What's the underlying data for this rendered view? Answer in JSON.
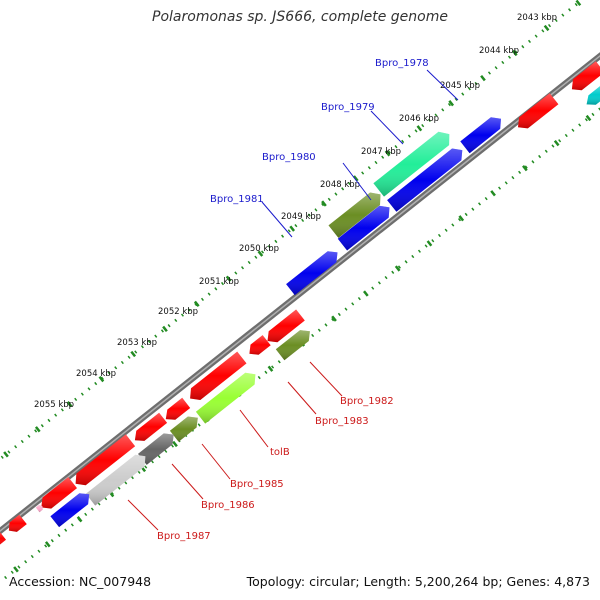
{
  "title": "Polaromonas sp. JS666, complete genome",
  "footer": {
    "accession": "Accession: NC_007948",
    "topology": "Topology: circular; Length: 5,200,264 bp; Genes: 4,873"
  },
  "ticks": [
    "2043 kbp",
    "2044 kbp",
    "2045 kbp",
    "2046 kbp",
    "2047 kbp",
    "2048 kbp",
    "2049 kbp",
    "2050 kbp",
    "2051 kbp",
    "2052 kbp",
    "2053 kbp",
    "2054 kbp",
    "2055 kbp"
  ],
  "gene_labels_top": [
    "Bpro_1978",
    "Bpro_1979",
    "Bpro_1980",
    "Bpro_1981"
  ],
  "gene_labels_bottom": [
    "Bpro_1982",
    "Bpro_1983",
    "tolB",
    "Bpro_1985",
    "Bpro_1986",
    "Bpro_1987"
  ],
  "colors": {
    "blue_label": "#1a1acc",
    "red_label": "#cc1a1a",
    "backbone": "#808080",
    "tick_green": "#228b22",
    "red": "#ff0000",
    "blue": "#0000ee",
    "olive": "#6b8e23",
    "green": "#22ee99",
    "lime": "#99ff33",
    "gray": "#666666",
    "lightgray": "#cccccc",
    "cyan": "#00cccc",
    "pink": "#ffaacc"
  }
}
